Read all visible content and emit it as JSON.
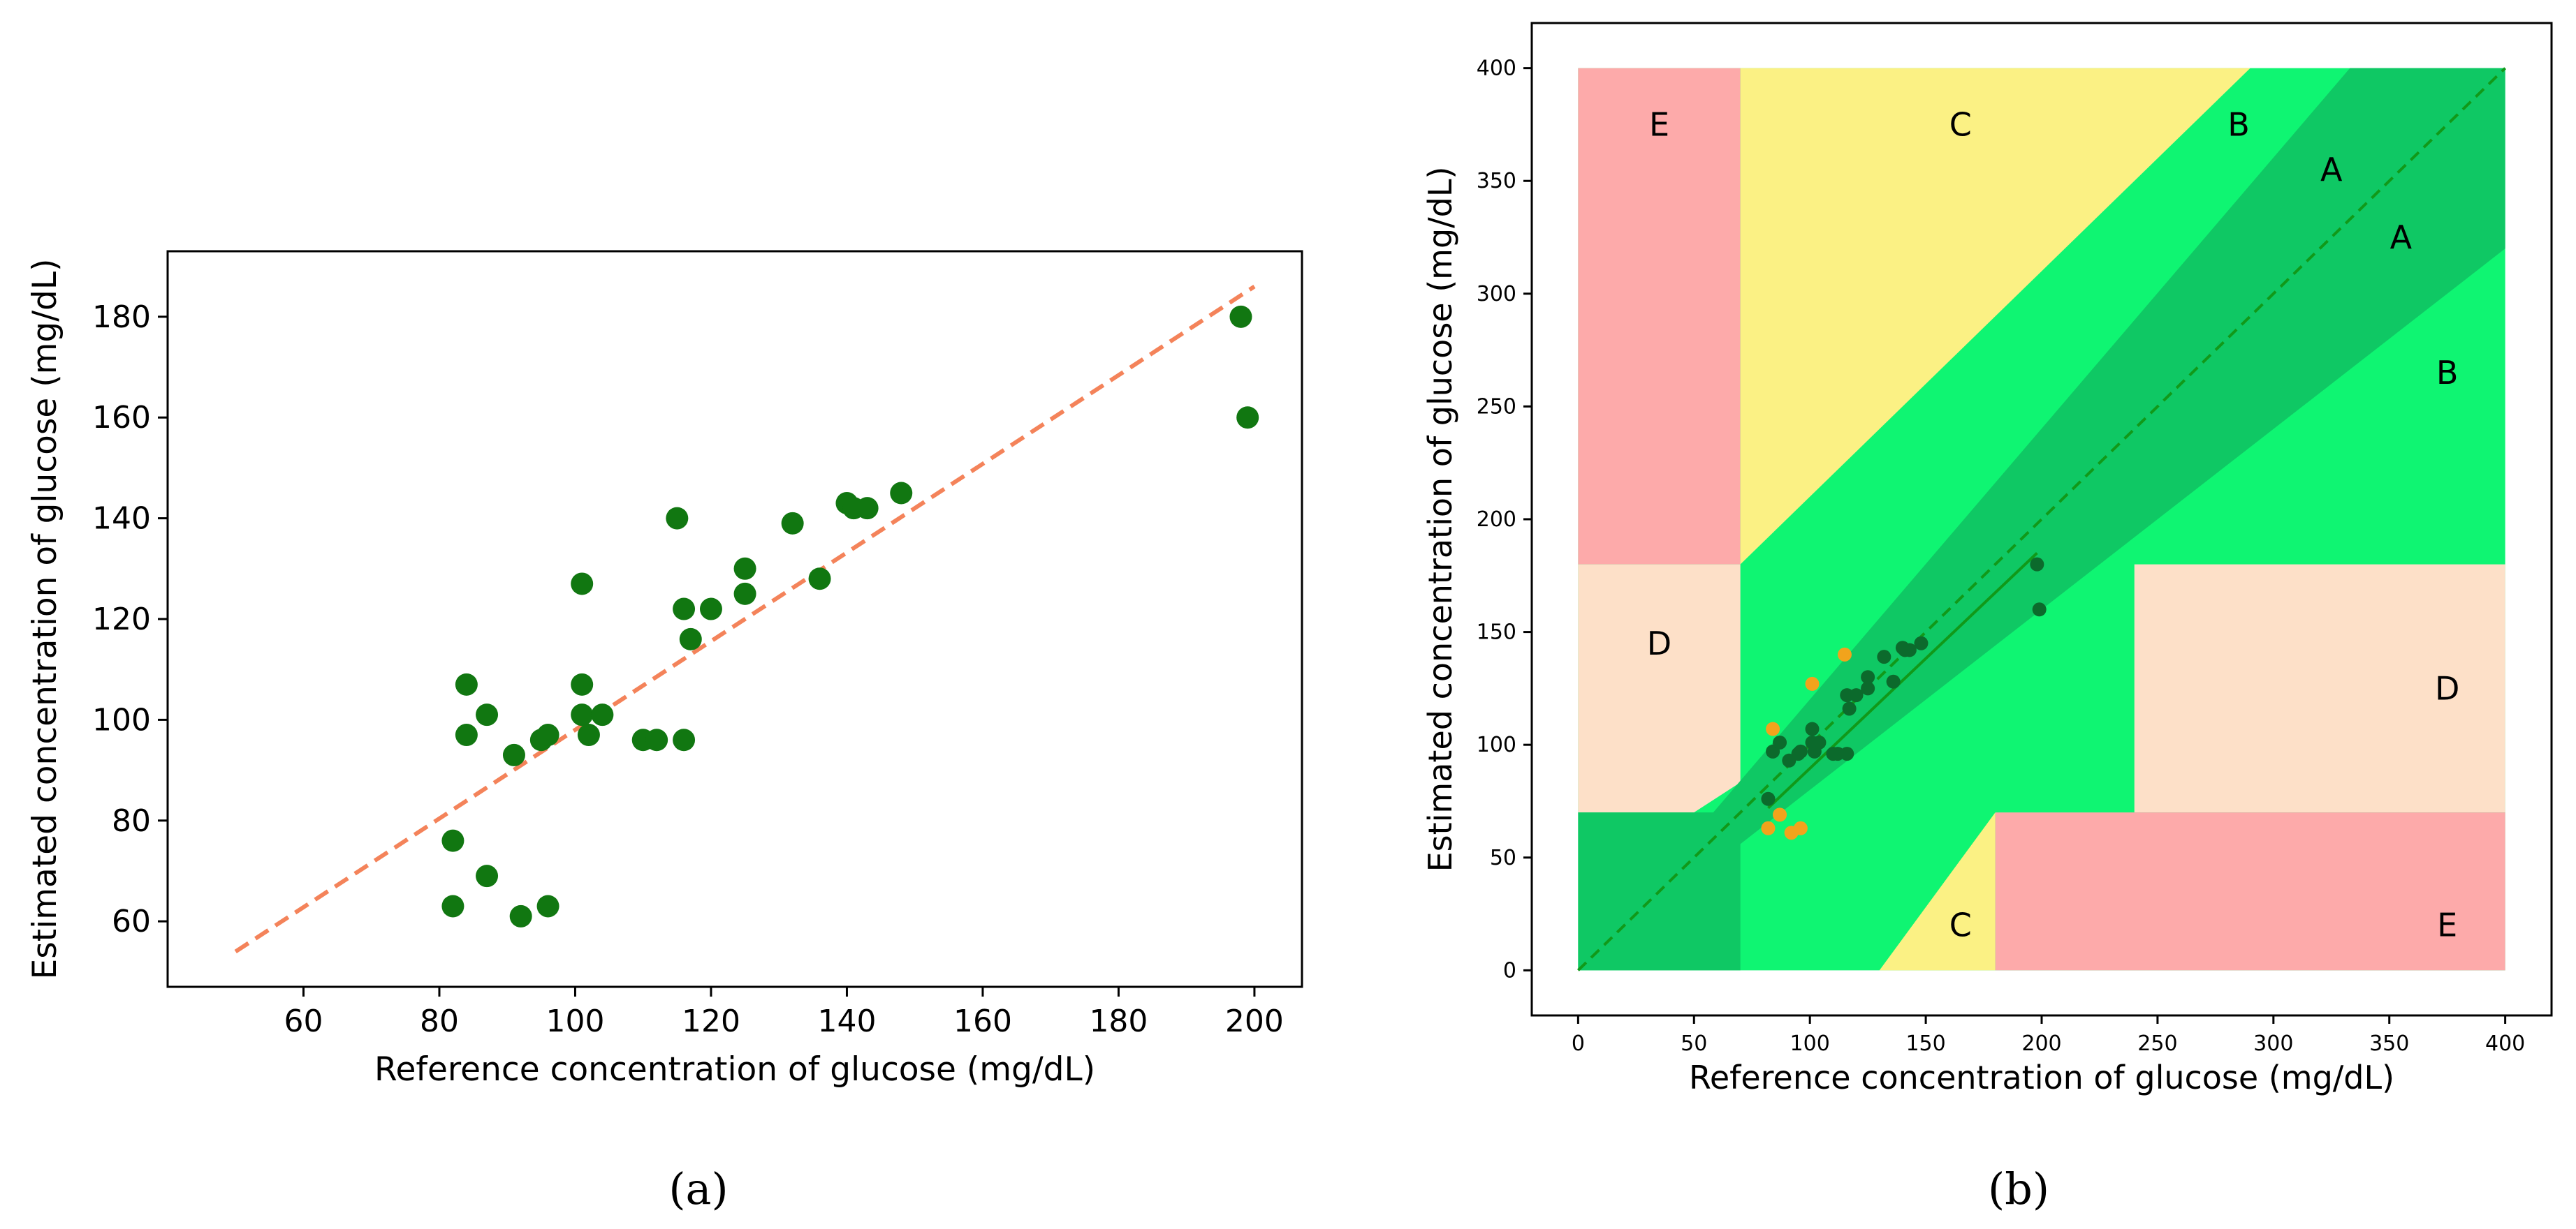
{
  "captions": {
    "a": "(a)",
    "b": "(b)"
  },
  "colors": {
    "marker": "#117711",
    "fit_line": "#f4835a",
    "zone_A": "#0fc864",
    "zone_B": "#0ff572",
    "zone_C": "#fbf184",
    "zone_D": "#fde0c8",
    "zone_E": "#fdaaaa",
    "outlier": "#f2a31c",
    "b_marker": "#0c6a2c",
    "b_diag": "#119919"
  },
  "chart_data": [
    {
      "type": "scatter",
      "xlabel": "Reference concentration of glucose (mg/dL)",
      "ylabel": "Estimated concentration of glucose (mg/dL)",
      "xlim": [
        40,
        207
      ],
      "ylim": [
        47,
        193
      ],
      "x_ticks": [
        "60",
        "80",
        "100",
        "120",
        "140",
        "160",
        "180",
        "200"
      ],
      "y_ticks": [
        "60",
        "80",
        "100",
        "120",
        "140",
        "160",
        "180"
      ],
      "grid": false,
      "points": [
        [
          82,
          76
        ],
        [
          82,
          63
        ],
        [
          84,
          107
        ],
        [
          84,
          97
        ],
        [
          87,
          101
        ],
        [
          87,
          69
        ],
        [
          91,
          93
        ],
        [
          92,
          61
        ],
        [
          95,
          96
        ],
        [
          96,
          97
        ],
        [
          96,
          63
        ],
        [
          101,
          127
        ],
        [
          101,
          107
        ],
        [
          101,
          101
        ],
        [
          102,
          97
        ],
        [
          104,
          101
        ],
        [
          110,
          96
        ],
        [
          112,
          96
        ],
        [
          115,
          140
        ],
        [
          116,
          96
        ],
        [
          116,
          122
        ],
        [
          117,
          116
        ],
        [
          120,
          122
        ],
        [
          125,
          130
        ],
        [
          125,
          125
        ],
        [
          132,
          139
        ],
        [
          136,
          128
        ],
        [
          140,
          143
        ],
        [
          141,
          142
        ],
        [
          143,
          142
        ],
        [
          148,
          145
        ],
        [
          198,
          180
        ],
        [
          199,
          160
        ]
      ],
      "fit_line": [
        [
          50,
          54
        ],
        [
          200,
          186
        ]
      ]
    },
    {
      "type": "scatter",
      "subtype": "clarke-error-grid",
      "xlabel": "Reference concentration of glucose (mg/dL)",
      "ylabel": "Estimated concentration of glucose (mg/dL)",
      "xlim": [
        -20,
        420
      ],
      "ylim": [
        -20,
        420
      ],
      "x_ticks": [
        "0",
        "50",
        "100",
        "150",
        "200",
        "250",
        "300",
        "350",
        "400"
      ],
      "y_ticks": [
        "0",
        "50",
        "100",
        "150",
        "200",
        "250",
        "300",
        "350",
        "400"
      ],
      "zone_labels": [
        {
          "text": "E",
          "x": 35,
          "y": 375
        },
        {
          "text": "C",
          "x": 165,
          "y": 375
        },
        {
          "text": "B",
          "x": 285,
          "y": 375
        },
        {
          "text": "A",
          "x": 325,
          "y": 355
        },
        {
          "text": "A",
          "x": 355,
          "y": 325
        },
        {
          "text": "B",
          "x": 375,
          "y": 265
        },
        {
          "text": "D",
          "x": 35,
          "y": 145
        },
        {
          "text": "D",
          "x": 375,
          "y": 125
        },
        {
          "text": "C",
          "x": 165,
          "y": 20
        },
        {
          "text": "E",
          "x": 375,
          "y": 20
        }
      ],
      "zones": {
        "A": [
          [
            0,
            0
          ],
          [
            70,
            0
          ],
          [
            70,
            56
          ],
          [
            400,
            320
          ],
          [
            400,
            400
          ],
          [
            333,
            400
          ],
          [
            58.3,
            70
          ],
          [
            0,
            70
          ]
        ],
        "B": [
          [
            70,
            0
          ],
          [
            130,
            0
          ],
          [
            180,
            70
          ],
          [
            240,
            70
          ],
          [
            240,
            180
          ],
          [
            400,
            180
          ],
          [
            400,
            320
          ],
          [
            70,
            56
          ],
          [
            70,
            180
          ],
          [
            58.3,
            70
          ],
          [
            290,
            400
          ],
          [
            70,
            400
          ],
          [
            70,
            180
          ]
        ],
        "C_upper": [
          [
            70,
            180
          ],
          [
            70,
            400
          ],
          [
            290,
            400
          ]
        ],
        "C_lower": [
          [
            130,
            0
          ],
          [
            180,
            0
          ],
          [
            180,
            70
          ]
        ],
        "D_left": [
          [
            0,
            70
          ],
          [
            50,
            70
          ],
          [
            70,
            83.3
          ],
          [
            70,
            180
          ],
          [
            0,
            180
          ]
        ],
        "D_right": [
          [
            240,
            70
          ],
          [
            400,
            70
          ],
          [
            400,
            180
          ],
          [
            240,
            180
          ]
        ],
        "E_upper": [
          [
            0,
            180
          ],
          [
            70,
            180
          ],
          [
            70,
            400
          ],
          [
            0,
            400
          ]
        ],
        "E_lower": [
          [
            180,
            0
          ],
          [
            400,
            0
          ],
          [
            400,
            70
          ],
          [
            180,
            70
          ]
        ]
      },
      "points": [
        [
          82,
          76
        ],
        [
          84,
          97
        ],
        [
          87,
          101
        ],
        [
          91,
          93
        ],
        [
          95,
          96
        ],
        [
          96,
          97
        ],
        [
          101,
          107
        ],
        [
          101,
          101
        ],
        [
          102,
          97
        ],
        [
          104,
          101
        ],
        [
          110,
          96
        ],
        [
          112,
          96
        ],
        [
          116,
          96
        ],
        [
          116,
          122
        ],
        [
          117,
          116
        ],
        [
          120,
          122
        ],
        [
          125,
          130
        ],
        [
          125,
          125
        ],
        [
          132,
          139
        ],
        [
          136,
          128
        ],
        [
          140,
          143
        ],
        [
          141,
          142
        ],
        [
          143,
          142
        ],
        [
          148,
          145
        ],
        [
          198,
          180
        ],
        [
          199,
          160
        ]
      ],
      "outlier_points": [
        [
          82,
          63
        ],
        [
          84,
          107
        ],
        [
          87,
          69
        ],
        [
          92,
          61
        ],
        [
          96,
          63
        ],
        [
          101,
          127
        ],
        [
          115,
          140
        ]
      ],
      "diagonal": [
        [
          0,
          0
        ],
        [
          400,
          400
        ]
      ],
      "fit_line": [
        [
          82,
          72
        ],
        [
          198,
          185
        ]
      ]
    }
  ]
}
